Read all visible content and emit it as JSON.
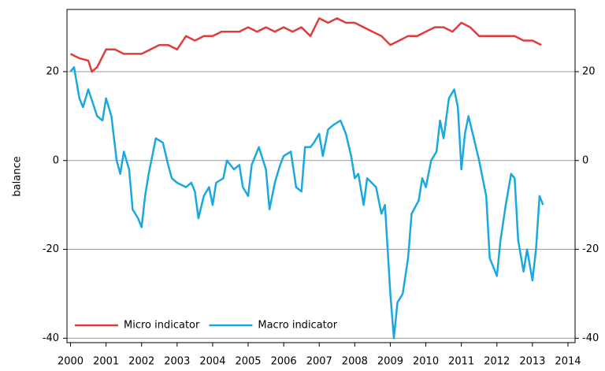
{
  "chart_data": {
    "type": "line",
    "y_label": "balance",
    "xlim": [
      1999.9,
      2014.2
    ],
    "xticks": [
      2000,
      2001,
      2002,
      2003,
      2004,
      2005,
      2006,
      2007,
      2008,
      2009,
      2010,
      2011,
      2012,
      2013,
      2014
    ],
    "ylim": [
      -41,
      34
    ],
    "yticks": [
      -40,
      -20,
      0,
      20
    ],
    "grid": true,
    "legend": "lower left",
    "series": [
      {
        "name": "Micro indicator",
        "color": "#e03c3c",
        "x": [
          2000.0,
          2000.25,
          2000.5,
          2000.6,
          2000.75,
          2001.0,
          2001.25,
          2001.5,
          2001.75,
          2002.0,
          2002.25,
          2002.5,
          2002.75,
          2003.0,
          2003.25,
          2003.5,
          2003.75,
          2004.0,
          2004.25,
          2004.5,
          2004.75,
          2005.0,
          2005.25,
          2005.5,
          2005.75,
          2006.0,
          2006.25,
          2006.5,
          2006.75,
          2007.0,
          2007.25,
          2007.5,
          2007.75,
          2008.0,
          2008.25,
          2008.5,
          2008.75,
          2009.0,
          2009.25,
          2009.5,
          2009.75,
          2010.0,
          2010.25,
          2010.5,
          2010.75,
          2011.0,
          2011.25,
          2011.5,
          2011.75,
          2012.0,
          2012.25,
          2012.5,
          2012.75,
          2013.0,
          2013.25
        ],
        "values": [
          24,
          23,
          22.5,
          20,
          21,
          25,
          25,
          24,
          24,
          24,
          25,
          26,
          26,
          25,
          28,
          27,
          28,
          28,
          29,
          29,
          29,
          30,
          29,
          30,
          29,
          30,
          29,
          30,
          28,
          32,
          31,
          32,
          31,
          31,
          30,
          29,
          28,
          26,
          27,
          28,
          28,
          29,
          30,
          30,
          29,
          31,
          30,
          28,
          28,
          28,
          28,
          28,
          27,
          27,
          26
        ]
      },
      {
        "name": "Macro indicator",
        "color": "#1aa8e0",
        "x": [
          2000.0,
          2000.1,
          2000.25,
          2000.35,
          2000.5,
          2000.75,
          2000.9,
          2001.0,
          2001.15,
          2001.3,
          2001.4,
          2001.5,
          2001.65,
          2001.75,
          2001.9,
          2002.0,
          2002.1,
          2002.2,
          2002.3,
          2002.4,
          2002.6,
          2002.75,
          2002.85,
          2003.0,
          2003.25,
          2003.4,
          2003.5,
          2003.6,
          2003.75,
          2003.9,
          2004.0,
          2004.1,
          2004.3,
          2004.4,
          2004.6,
          2004.75,
          2004.85,
          2005.0,
          2005.1,
          2005.3,
          2005.5,
          2005.6,
          2005.75,
          2005.9,
          2006.0,
          2006.2,
          2006.35,
          2006.5,
          2006.6,
          2006.75,
          2006.85,
          2007.0,
          2007.1,
          2007.25,
          2007.4,
          2007.6,
          2007.75,
          2007.9,
          2008.0,
          2008.1,
          2008.25,
          2008.35,
          2008.6,
          2008.75,
          2008.85,
          2009.0,
          2009.1,
          2009.2,
          2009.35,
          2009.5,
          2009.6,
          2009.8,
          2009.9,
          2010.0,
          2010.15,
          2010.3,
          2010.4,
          2010.5,
          2010.65,
          2010.8,
          2010.9,
          2011.0,
          2011.1,
          2011.2,
          2011.35,
          2011.5,
          2011.7,
          2011.8,
          2011.9,
          2012.0,
          2012.1,
          2012.25,
          2012.4,
          2012.5,
          2012.6,
          2012.75,
          2012.85,
          2013.0,
          2013.1,
          2013.2,
          2013.3
        ],
        "values": [
          20,
          21,
          14,
          12,
          16,
          10,
          9,
          14,
          10,
          0,
          -3,
          2,
          -2,
          -11,
          -13,
          -15,
          -8,
          -3,
          1,
          5,
          4,
          -1,
          -4,
          -5,
          -6,
          -5,
          -7,
          -13,
          -8,
          -6,
          -10,
          -5,
          -4,
          0,
          -2,
          -1,
          -6,
          -8,
          -1,
          3,
          -2,
          -11,
          -5,
          -1,
          1,
          2,
          -6,
          -7,
          3,
          3,
          4,
          6,
          1,
          7,
          8,
          9,
          6,
          1,
          -4,
          -3,
          -10,
          -4,
          -6,
          -12,
          -10,
          -30,
          -40,
          -32,
          -30,
          -22,
          -12,
          -9,
          -4,
          -6,
          0,
          2,
          9,
          5,
          14,
          16,
          12,
          -2,
          6,
          10,
          5,
          0,
          -8,
          -22,
          -24,
          -26,
          -18,
          -10,
          -3,
          -4,
          -18,
          -25,
          -20,
          -27,
          -20,
          -8,
          -10
        ]
      }
    ]
  }
}
